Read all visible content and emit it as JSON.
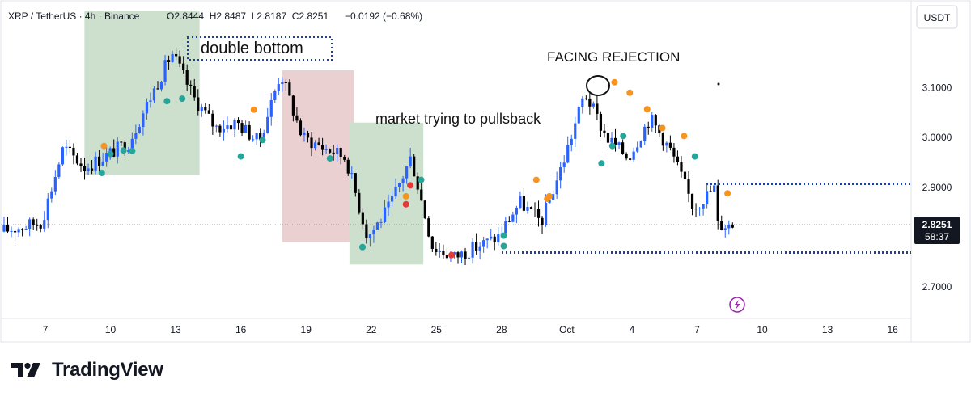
{
  "header": {
    "symbol": "XRP / TetherUS · 4h · Binance",
    "ohlc": "O2.8444  H2.8487  L2.8187  C2.8251",
    "change": "−0.0192 (−0.68%)",
    "currency": "USDT",
    "change_color": "#f23645"
  },
  "price_tag": {
    "price": "2.8251",
    "countdown": "58:37"
  },
  "annotations": {
    "double_bottom": "double bottom",
    "facing_rejection": "FACING REJECTION",
    "market_trying": "market trying  to pullsback"
  },
  "brand": {
    "name": "TradingView",
    "logo_icon": "tradingview-logo-icon"
  },
  "colors": {
    "up_candle": "#2962ff",
    "down_candle": "#000000",
    "green_zone": "#cddfcd",
    "red_zone": "#ead0d0",
    "orange_dot": "#f7941d",
    "teal_dot": "#26a69a",
    "red_dot": "#e53935",
    "level_line": "#1f3f9a",
    "flash_icon": "#9c27b0"
  },
  "chart_data": {
    "type": "candlestick",
    "timeframe": "4h",
    "x_tick_labels": [
      "7",
      "10",
      "13",
      "16",
      "19",
      "22",
      "25",
      "28",
      "Oct",
      "4",
      "7",
      "10",
      "13",
      "16"
    ],
    "y_tick_labels": [
      "3.1000",
      "3.0000",
      "2.9000",
      "2.7000"
    ],
    "y_ticks": [
      3.1,
      3.0,
      2.9,
      2.7
    ],
    "ylim": [
      2.64,
      3.26
    ],
    "last_price": 2.8251,
    "levels": [
      {
        "name": "resistance",
        "value": 2.907
      },
      {
        "name": "support",
        "value": 2.769
      }
    ],
    "zones": [
      {
        "color": "green",
        "x_from": 8.8,
        "x_to": 14.1,
        "y_from": 2.925,
        "y_to": 3.255
      },
      {
        "color": "red",
        "x_from": 17.9,
        "x_to": 21.2,
        "y_from": 2.79,
        "y_to": 3.135
      },
      {
        "color": "green",
        "x_from": 21.0,
        "x_to": 24.4,
        "y_from": 2.745,
        "y_to": 3.03
      }
    ],
    "key_points": [
      [
        "Sep 5",
        2.81
      ],
      [
        "Sep 7",
        2.83
      ],
      [
        "Sep 8",
        2.98
      ],
      [
        "Sep 9",
        2.94
      ],
      [
        "Sep 11",
        2.99
      ],
      [
        "Sep 13",
        3.17
      ],
      [
        "Sep 14",
        3.08
      ],
      [
        "Sep 15",
        3.02
      ],
      [
        "Sep 16",
        3.03
      ],
      [
        "Sep 17",
        2.99
      ],
      [
        "Sep 18",
        3.13
      ],
      [
        "Sep 19",
        3.0
      ],
      [
        "Sep 20",
        2.98
      ],
      [
        "Sep 21",
        2.96
      ],
      [
        "Sep 22",
        2.8
      ],
      [
        "Sep 23",
        2.86
      ],
      [
        "Sep 24",
        2.96
      ],
      [
        "Sep 25",
        2.78
      ],
      [
        "Sep 26",
        2.76
      ],
      [
        "Sep 28",
        2.8
      ],
      [
        "Sep 29",
        2.87
      ],
      [
        "Sep 30",
        2.83
      ],
      [
        "Oct 1",
        2.95
      ],
      [
        "Oct 2",
        3.09
      ],
      [
        "Oct 3",
        3.0
      ],
      [
        "Oct 4",
        2.96
      ],
      [
        "Oct 5",
        3.04
      ],
      [
        "Oct 6",
        2.97
      ],
      [
        "Oct 7",
        2.86
      ],
      [
        "Oct 8",
        2.9
      ],
      [
        "Oct 8",
        2.825
      ]
    ],
    "signal_dots": [
      {
        "type": "orange",
        "x": 9.7,
        "y": 2.983
      },
      {
        "type": "teal",
        "x": 9.6,
        "y": 2.929
      },
      {
        "type": "teal",
        "x": 10.0,
        "y": 2.967
      },
      {
        "type": "teal",
        "x": 10.6,
        "y": 2.974
      },
      {
        "type": "teal",
        "x": 11.0,
        "y": 2.973
      },
      {
        "type": "teal",
        "x": 12.6,
        "y": 3.073
      },
      {
        "type": "teal",
        "x": 13.3,
        "y": 3.078
      },
      {
        "type": "orange",
        "x": 16.6,
        "y": 3.056
      },
      {
        "type": "teal",
        "x": 16.0,
        "y": 2.962
      },
      {
        "type": "teal",
        "x": 17.0,
        "y": 2.995
      },
      {
        "type": "teal",
        "x": 20.1,
        "y": 2.958
      },
      {
        "type": "teal",
        "x": 21.6,
        "y": 2.78
      },
      {
        "type": "orange",
        "x": 23.6,
        "y": 2.882
      },
      {
        "type": "red",
        "x": 23.6,
        "y": 2.866
      },
      {
        "type": "red",
        "x": 23.8,
        "y": 2.904
      },
      {
        "type": "teal",
        "x": 24.3,
        "y": 2.915
      },
      {
        "type": "red",
        "x": 25.7,
        "y": 2.764
      },
      {
        "type": "teal",
        "x": 28.1,
        "y": 2.782
      },
      {
        "type": "teal",
        "x": 28.1,
        "y": 2.803
      },
      {
        "type": "orange",
        "x": 29.6,
        "y": 2.915
      },
      {
        "type": "orange",
        "x": 30.1,
        "y": 2.877
      },
      {
        "type": "orange",
        "x": 30.2,
        "y": 2.882
      },
      {
        "type": "orange",
        "x": 33.2,
        "y": 3.111
      },
      {
        "type": "orange",
        "x": 33.9,
        "y": 3.09
      },
      {
        "type": "orange",
        "x": 34.7,
        "y": 3.057
      },
      {
        "type": "orange",
        "x": 35.4,
        "y": 3.019
      },
      {
        "type": "orange",
        "x": 36.4,
        "y": 3.003
      },
      {
        "type": "teal",
        "x": 33.1,
        "y": 2.983
      },
      {
        "type": "teal",
        "x": 33.6,
        "y": 3.003
      },
      {
        "type": "teal",
        "x": 32.6,
        "y": 2.948
      },
      {
        "type": "teal",
        "x": 36.9,
        "y": 2.962
      },
      {
        "type": "orange",
        "x": 38.4,
        "y": 2.888
      }
    ]
  }
}
